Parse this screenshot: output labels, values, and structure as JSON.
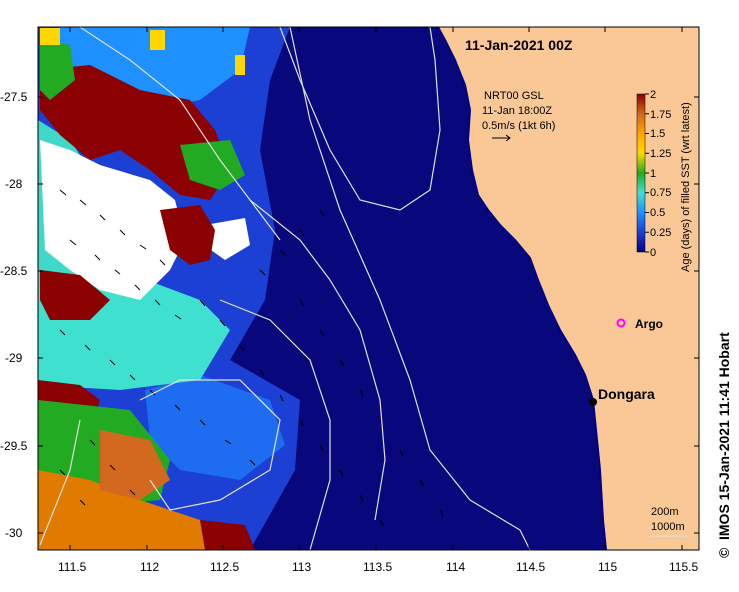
{
  "map": {
    "title": "11-Jan-2021 00Z",
    "credit": "IMOS 15-Jan-2021 11:41 Hobart",
    "copyright_symbol": "©",
    "x_ticks": [
      "111.5",
      "112",
      "112.5",
      "113",
      "113.5",
      "114",
      "114.5",
      "115",
      "115.5"
    ],
    "y_ticks": [
      "-27.5",
      "-28",
      "-28.5",
      "-29",
      "-29.5",
      "-30"
    ],
    "current_legend": {
      "line1": "NRT00 GSL",
      "line2": "11-Jan 18:00Z",
      "line3": "0.5m/s (1kt 6h)",
      "arrow_icon": "arrow-right"
    },
    "colorbar": {
      "title": "Age (days) of filled SST (wrt latest)",
      "labels": [
        "2",
        "1.75",
        "1.5",
        "1.25",
        "1",
        "0.75",
        "0.5",
        "0.25",
        "0"
      ],
      "colors": [
        "#8b0000",
        "#d2691e",
        "#ffa500",
        "#ffd700",
        "#22aa22",
        "#40e0d0",
        "#1e90ff",
        "#1c3fd4",
        "#00008b"
      ]
    },
    "places": {
      "dongara": "Dongara",
      "argo": "Argo"
    },
    "isobath_legend": {
      "line1": "200m",
      "line2": "1000m"
    },
    "colors": {
      "land": "#f9c896",
      "deep_ocean": "#08087c",
      "coast_dark": "#000080",
      "argo": "#ff00ff"
    }
  }
}
